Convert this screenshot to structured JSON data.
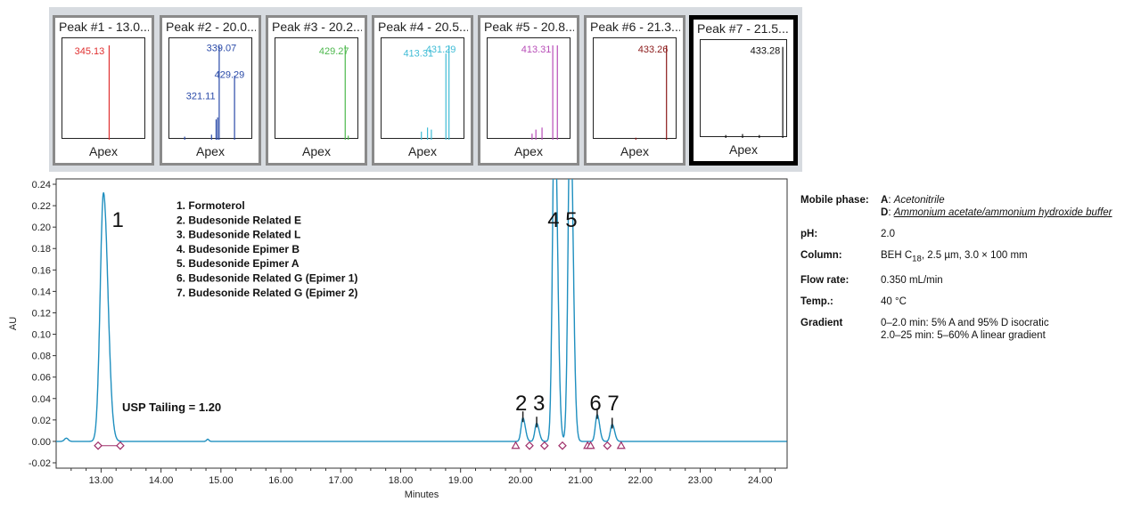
{
  "spectra": {
    "panels": [
      {
        "title": "Peak #1 - 13.0...",
        "footer": "Apex",
        "color": "#e03030",
        "labels": [
          "345.13"
        ],
        "selected": false
      },
      {
        "title": "Peak #2 - 20.0...",
        "footer": "Apex",
        "color": "#2a4aa8",
        "labels": [
          "339.07",
          "321.11",
          "429.29"
        ],
        "selected": false
      },
      {
        "title": "Peak #3 - 20.2...",
        "footer": "Apex",
        "color": "#4db84d",
        "labels": [
          "429.27"
        ],
        "selected": false
      },
      {
        "title": "Peak #4 - 20.5...",
        "footer": "Apex",
        "color": "#3fbcd6",
        "labels": [
          "413.31",
          "431.29"
        ],
        "selected": false
      },
      {
        "title": "Peak #5 - 20.8...",
        "footer": "Apex",
        "color": "#b84db8",
        "labels": [
          "413.31"
        ],
        "selected": false
      },
      {
        "title": "Peak #6 - 21.3...",
        "footer": "Apex",
        "color": "#8b1a1a",
        "labels": [
          "433.26"
        ],
        "selected": false
      },
      {
        "title": "Peak #7 - 21.5...",
        "footer": "Apex",
        "color": "#111111",
        "labels": [
          "433.28"
        ],
        "selected": true
      }
    ]
  },
  "chart_data": {
    "type": "line",
    "xlabel": "Minutes",
    "ylabel": "AU",
    "xlim": [
      12.25,
      24.45
    ],
    "ylim": [
      -0.025,
      0.245
    ],
    "x_ticks": [
      "13.00",
      "14.00",
      "15.00",
      "16.00",
      "17.00",
      "18.00",
      "19.00",
      "20.00",
      "21.00",
      "22.00",
      "23.00",
      "24.00"
    ],
    "x_tick_values": [
      13,
      14,
      15,
      16,
      17,
      18,
      19,
      20,
      21,
      22,
      23,
      24
    ],
    "y_ticks": [
      "-0.02",
      "0.00",
      "0.02",
      "0.04",
      "0.06",
      "0.08",
      "0.10",
      "0.12",
      "0.14",
      "0.16",
      "0.18",
      "0.20",
      "0.22",
      "0.24"
    ],
    "y_tick_values": [
      -0.02,
      0,
      0.02,
      0.04,
      0.06,
      0.08,
      0.1,
      0.12,
      0.14,
      0.16,
      0.18,
      0.2,
      0.22,
      0.24
    ],
    "trace_color": "#1f8fbf",
    "marker_color": "#a0306a",
    "peaks": [
      {
        "label": "1",
        "rt": 13.04,
        "height": 0.232
      },
      {
        "label": "2",
        "rt": 20.04,
        "height": 0.022
      },
      {
        "label": "3",
        "rt": 20.27,
        "height": 0.017
      },
      {
        "label": "4",
        "rt": 20.57,
        "height": 0.32
      },
      {
        "label": "5",
        "rt": 20.83,
        "height": 0.32
      },
      {
        "label": "6",
        "rt": 21.28,
        "height": 0.025
      },
      {
        "label": "7",
        "rt": 21.53,
        "height": 0.016
      }
    ],
    "legend": [
      "1. Formoterol",
      "2. Budesonide Related E",
      "3. Budesonide Related L",
      "4. Budesonide Epimer B",
      "5. Budesonide Epimer A",
      "6. Budesonide Related G (Epimer 1)",
      "7. Budesonide Related G (Epimer 2)"
    ],
    "annotation": "USP Tailing = 1.20",
    "peak_number_labels": [
      "1",
      "4 5",
      "2 3",
      "6 7"
    ]
  },
  "conditions": {
    "mobile_phase_label": "Mobile phase:",
    "mobile_phase_a_key": "A",
    "mobile_phase_a": "Acetonitrile",
    "mobile_phase_d_key": "D",
    "mobile_phase_d": "Ammonium acetate/ammonium hydroxide buffer",
    "ph_label": "pH:",
    "ph": "2.0",
    "column_label": "Column:",
    "column_pre": "BEH C",
    "column_sub": "18",
    "column_post": ", 2.5 µm, 3.0 × 100 mm",
    "flow_label": "Flow rate:",
    "flow": "0.350 mL/min",
    "temp_label": "Temp.:",
    "temp": "40 °C",
    "gradient_label": "Gradient",
    "gradient_1": "0–2.0 min: 5% A and 95% D isocratic",
    "gradient_2": "2.0–25 min: 5–60% A linear gradient"
  }
}
